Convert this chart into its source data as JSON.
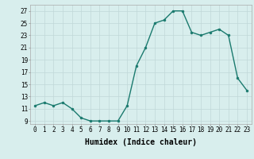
{
  "x": [
    0,
    1,
    2,
    3,
    4,
    5,
    6,
    7,
    8,
    9,
    10,
    11,
    12,
    13,
    14,
    15,
    16,
    17,
    18,
    19,
    20,
    21,
    22,
    23
  ],
  "y": [
    11.5,
    12,
    11.5,
    12,
    11,
    9.5,
    9,
    9,
    9,
    9,
    11.5,
    18,
    21,
    25,
    25.5,
    27,
    27,
    23.5,
    23,
    23.5,
    24,
    23,
    16,
    14
  ],
  "line_color": "#1a7a6e",
  "marker": "o",
  "marker_size": 2,
  "bg_color": "#d8eeed",
  "grid_color": "#c0d8d8",
  "xlabel": "Humidex (Indice chaleur)",
  "xlabel_fontsize": 7,
  "xlim": [
    -0.5,
    23.5
  ],
  "ylim": [
    8.5,
    28
  ],
  "yticks": [
    9,
    11,
    13,
    15,
    17,
    19,
    21,
    23,
    25,
    27
  ],
  "xticks": [
    0,
    1,
    2,
    3,
    4,
    5,
    6,
    7,
    8,
    9,
    10,
    11,
    12,
    13,
    14,
    15,
    16,
    17,
    18,
    19,
    20,
    21,
    22,
    23
  ],
  "tick_fontsize": 5.5,
  "line_width": 1.0
}
